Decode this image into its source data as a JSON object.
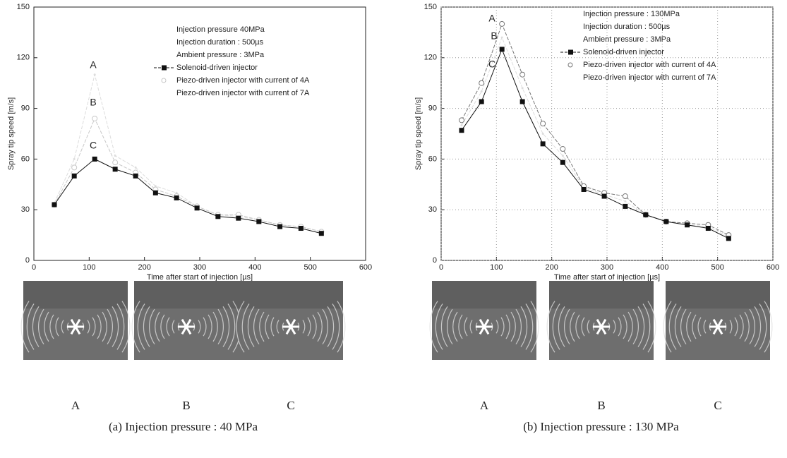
{
  "chart_data": [
    {
      "type": "line",
      "x_label": "Time after start of injection [µs]",
      "y_label": "Spray tip speed [m/s]",
      "xlim": [
        0,
        600
      ],
      "xticks": [
        0,
        100,
        200,
        300,
        400,
        500,
        600
      ],
      "ylim": [
        0,
        150
      ],
      "yticks": [
        0,
        30,
        60,
        90,
        120,
        150
      ],
      "grid": false,
      "notes": [
        "Injection pressure  40MPa",
        "Injection duration : 500µs",
        "Ambient pressure : 3MPa"
      ],
      "annotations": [
        "A",
        "B",
        "C"
      ],
      "x": [
        37,
        73,
        110,
        147,
        184,
        220,
        258,
        295,
        333,
        370,
        407,
        445,
        483,
        520
      ],
      "series": [
        {
          "name": "Solenoid-driven injector",
          "color": "#111111",
          "marker": "square",
          "values": [
            33,
            50,
            60,
            54,
            50,
            40,
            37,
            31,
            26,
            25,
            23,
            20,
            19,
            16
          ]
        },
        {
          "name": "Piezo-driven injector with current of 4A",
          "color": "#c8c8c8",
          "marker": "circle",
          "values": [
            33,
            55,
            84,
            58,
            52,
            42,
            38,
            32,
            27,
            27,
            24,
            21,
            20,
            17
          ]
        },
        {
          "name": "Piezo-driven injector with current of 7A",
          "color": "#dddddd",
          "marker": "none",
          "values": [
            34,
            60,
            110,
            62,
            55,
            44,
            40,
            32,
            27,
            26,
            24,
            21,
            20,
            17
          ]
        }
      ],
      "panel_labels": [
        "A",
        "B",
        "C"
      ],
      "caption": "(a)  Injection pressure : 40 MPa"
    },
    {
      "type": "line",
      "x_label": "Time after start of injection [µs]",
      "y_label": "Spray tip speed [m/s]",
      "xlim": [
        0,
        600
      ],
      "xticks": [
        0,
        100,
        200,
        300,
        400,
        500,
        600
      ],
      "ylim": [
        0,
        150
      ],
      "yticks": [
        0,
        30,
        60,
        90,
        120,
        150
      ],
      "grid": true,
      "notes": [
        "Injection pressure : 130MPa",
        "Injection duration  : 500µs",
        "Ambient pressure : 3MPa"
      ],
      "annotations": [
        "A",
        "B",
        "C"
      ],
      "x": [
        37,
        73,
        110,
        147,
        184,
        220,
        258,
        295,
        333,
        370,
        407,
        445,
        483,
        520
      ],
      "series": [
        {
          "name": "Solenoid-driven injector",
          "color": "#111111",
          "marker": "square",
          "values": [
            77,
            94,
            125,
            94,
            69,
            58,
            42,
            38,
            32,
            27,
            23,
            21,
            19,
            13
          ]
        },
        {
          "name": "Piezo-driven injector with current of 4A",
          "color": "#777777",
          "marker": "circle",
          "values": [
            83,
            105,
            140,
            110,
            81,
            66,
            44,
            40,
            38,
            27,
            23,
            22,
            21,
            15
          ]
        },
        {
          "name": "Piezo-driven injector with current of 7A",
          "color": "#dddddd",
          "marker": "none",
          "values": [
            80,
            100,
            132,
            102,
            75,
            62,
            43,
            39,
            35,
            27,
            23,
            21,
            20,
            14
          ]
        }
      ],
      "panel_labels": [
        "A",
        "B",
        "C"
      ],
      "caption": "(b)  Injection pressure : 130 MPa"
    }
  ]
}
